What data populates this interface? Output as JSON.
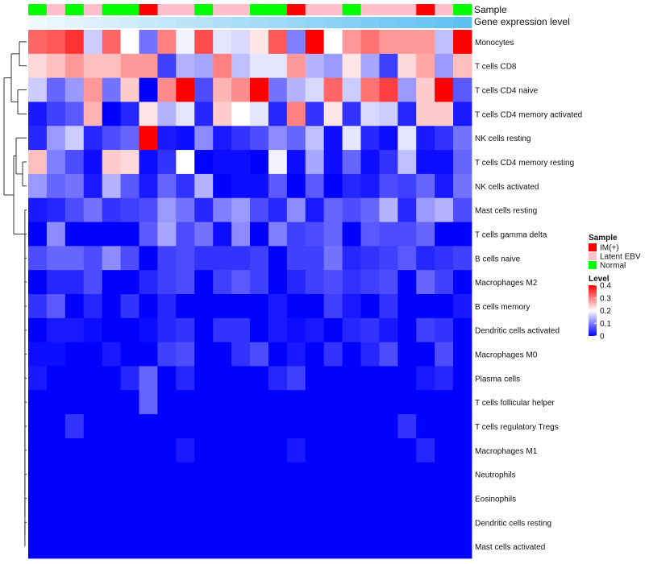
{
  "chart_data": {
    "type": "heatmap",
    "title": "",
    "xlabel": "",
    "ylabel": "",
    "annotation_rows": [
      "Sample",
      "Gene expression level"
    ],
    "sample_groups": [
      "N",
      "L",
      "N",
      "L",
      "N",
      "N",
      "I",
      "L",
      "L",
      "N",
      "L",
      "L",
      "N",
      "N",
      "I",
      "L",
      "L",
      "N",
      "L",
      "L",
      "L",
      "I",
      "L",
      "N"
    ],
    "gene_expression_level": [
      0.02,
      0.06,
      0.1,
      0.14,
      0.18,
      0.22,
      0.26,
      0.3,
      0.34,
      0.38,
      0.42,
      0.46,
      0.5,
      0.54,
      0.58,
      0.62,
      0.66,
      0.7,
      0.74,
      0.78,
      0.82,
      0.86,
      0.9,
      0.94
    ],
    "rows": [
      "Monocytes",
      "T cells CD8",
      "T cells CD4 naive",
      "T cells CD4 memory activated",
      "NK cells resting",
      "T cells CD4 memory resting",
      "NK cells activated",
      "Mast cells resting",
      "T cells gamma delta",
      "B cells naive",
      "Macrophages M2",
      "B cells memory",
      "Dendritic cells activated",
      "Macrophages M0",
      "Plasma cells",
      "T cells follicular helper",
      "T cells regulatory  Tregs",
      "Macrophages M1",
      "Neutrophils",
      "Eosinophils",
      "Dendritic cells resting",
      "Mast cells activated"
    ],
    "values": [
      [
        0.32,
        0.33,
        0.36,
        0.16,
        0.32,
        0.2,
        0.09,
        0.3,
        0.19,
        0.34,
        0.18,
        0.17,
        0.22,
        0.33,
        0.1,
        0.4,
        0.2,
        0.28,
        0.31,
        0.28,
        0.28,
        0.28,
        0.15,
        0.4
      ],
      [
        0.23,
        0.25,
        0.28,
        0.25,
        0.25,
        0.28,
        0.28,
        0.05,
        0.14,
        0.13,
        0.3,
        0.15,
        0.18,
        0.18,
        0.28,
        0.14,
        0.12,
        0.22,
        0.13,
        0.05,
        0.23,
        0.27,
        0.12,
        0.25
      ],
      [
        0.16,
        0.08,
        0.12,
        0.28,
        0.09,
        0.24,
        0.0,
        0.29,
        0.4,
        0.06,
        0.26,
        0.29,
        0.4,
        0.09,
        0.14,
        0.17,
        0.32,
        0.16,
        0.31,
        0.35,
        0.12,
        0.24,
        0.4,
        0.07
      ],
      [
        0.02,
        0.05,
        0.07,
        0.26,
        0.0,
        0.03,
        0.22,
        0.14,
        0.18,
        0.03,
        0.24,
        0.2,
        0.18,
        0.03,
        0.3,
        0.04,
        0.22,
        0.04,
        0.17,
        0.16,
        0.03,
        0.24,
        0.24,
        0.02
      ],
      [
        0.03,
        0.12,
        0.16,
        0.03,
        0.06,
        0.08,
        0.4,
        0.02,
        0.01,
        0.11,
        0.02,
        0.04,
        0.06,
        0.11,
        0.08,
        0.15,
        0.01,
        0.18,
        0.03,
        0.01,
        0.18,
        0.02,
        0.04,
        0.09
      ],
      [
        0.25,
        0.1,
        0.06,
        0.01,
        0.24,
        0.23,
        0.01,
        0.04,
        0.2,
        0.0,
        0.01,
        0.01,
        0.0,
        0.19,
        0.01,
        0.13,
        0.01,
        0.08,
        0.01,
        0.04,
        0.15,
        0.01,
        0.01,
        0.08
      ],
      [
        0.12,
        0.08,
        0.09,
        0.02,
        0.14,
        0.07,
        0.02,
        0.08,
        0.04,
        0.14,
        0.0,
        0.01,
        0.01,
        0.07,
        0.0,
        0.07,
        0.0,
        0.03,
        0.02,
        0.06,
        0.05,
        0.08,
        0.02,
        0.09
      ],
      [
        0.02,
        0.03,
        0.06,
        0.09,
        0.04,
        0.05,
        0.06,
        0.12,
        0.09,
        0.03,
        0.1,
        0.12,
        0.06,
        0.03,
        0.11,
        0.02,
        0.08,
        0.06,
        0.08,
        0.14,
        0.03,
        0.12,
        0.14,
        0.06
      ],
      [
        0.0,
        0.11,
        0.0,
        0.0,
        0.0,
        0.0,
        0.07,
        0.13,
        0.06,
        0.09,
        0.01,
        0.11,
        0.0,
        0.1,
        0.05,
        0.06,
        0.08,
        0.0,
        0.07,
        0.06,
        0.06,
        0.08,
        0.0,
        0.0
      ],
      [
        0.06,
        0.08,
        0.08,
        0.06,
        0.11,
        0.06,
        0.0,
        0.05,
        0.06,
        0.04,
        0.04,
        0.04,
        0.05,
        0.0,
        0.05,
        0.05,
        0.09,
        0.03,
        0.04,
        0.05,
        0.07,
        0.03,
        0.04,
        0.05
      ],
      [
        0.0,
        0.03,
        0.03,
        0.06,
        0.0,
        0.0,
        0.03,
        0.05,
        0.06,
        0.0,
        0.05,
        0.07,
        0.05,
        0.0,
        0.03,
        0.05,
        0.06,
        0.04,
        0.05,
        0.06,
        0.0,
        0.08,
        0.05,
        0.0
      ],
      [
        0.04,
        0.07,
        0.0,
        0.03,
        0.0,
        0.04,
        0.0,
        0.03,
        0.0,
        0.0,
        0.0,
        0.0,
        0.0,
        0.02,
        0.0,
        0.0,
        0.05,
        0.02,
        0.0,
        0.04,
        0.0,
        0.0,
        0.0,
        0.02
      ],
      [
        0.0,
        0.02,
        0.02,
        0.01,
        0.0,
        0.0,
        0.01,
        0.03,
        0.04,
        0.0,
        0.04,
        0.04,
        0.0,
        0.02,
        0.01,
        0.02,
        0.0,
        0.03,
        0.04,
        0.02,
        0.0,
        0.05,
        0.04,
        0.0
      ],
      [
        0.01,
        0.01,
        0.0,
        0.0,
        0.02,
        0.0,
        0.0,
        0.05,
        0.06,
        0.0,
        0.0,
        0.04,
        0.06,
        0.0,
        0.02,
        0.0,
        0.04,
        0.0,
        0.03,
        0.06,
        0.0,
        0.0,
        0.06,
        0.0
      ],
      [
        0.02,
        0.0,
        0.0,
        0.0,
        0.0,
        0.03,
        0.08,
        0.0,
        0.03,
        0.0,
        0.0,
        0.0,
        0.0,
        0.03,
        0.05,
        0.0,
        0.0,
        0.0,
        0.0,
        0.0,
        0.0,
        0.02,
        0.03,
        0.0
      ],
      [
        0.0,
        0.0,
        0.0,
        0.0,
        0.0,
        0.0,
        0.08,
        0.0,
        0.0,
        0.0,
        0.0,
        0.0,
        0.0,
        0.0,
        0.0,
        0.0,
        0.0,
        0.0,
        0.0,
        0.0,
        0.0,
        0.0,
        0.0,
        0.0
      ],
      [
        0.0,
        0.0,
        0.04,
        0.0,
        0.0,
        0.0,
        0.0,
        0.0,
        0.0,
        0.0,
        0.0,
        0.0,
        0.0,
        0.0,
        0.0,
        0.0,
        0.0,
        0.0,
        0.0,
        0.0,
        0.04,
        0.0,
        0.0,
        0.0
      ],
      [
        0.0,
        0.0,
        0.0,
        0.0,
        0.0,
        0.0,
        0.0,
        0.0,
        0.02,
        0.0,
        0.0,
        0.0,
        0.0,
        0.0,
        0.02,
        0.0,
        0.0,
        0.0,
        0.0,
        0.0,
        0.0,
        0.03,
        0.0,
        0.0
      ],
      [
        0.0,
        0.0,
        0.0,
        0.0,
        0.0,
        0.0,
        0.0,
        0.0,
        0.0,
        0.0,
        0.0,
        0.0,
        0.0,
        0.0,
        0.0,
        0.0,
        0.0,
        0.0,
        0.0,
        0.0,
        0.0,
        0.0,
        0.0,
        0.0
      ],
      [
        0.0,
        0.0,
        0.0,
        0.0,
        0.0,
        0.0,
        0.0,
        0.0,
        0.0,
        0.0,
        0.0,
        0.0,
        0.0,
        0.0,
        0.0,
        0.0,
        0.0,
        0.0,
        0.0,
        0.0,
        0.0,
        0.0,
        0.0,
        0.0
      ],
      [
        0.0,
        0.0,
        0.0,
        0.0,
        0.0,
        0.0,
        0.0,
        0.0,
        0.0,
        0.0,
        0.0,
        0.0,
        0.0,
        0.0,
        0.0,
        0.0,
        0.0,
        0.0,
        0.0,
        0.0,
        0.0,
        0.0,
        0.0,
        0.0
      ],
      [
        0.0,
        0.0,
        0.0,
        0.0,
        0.0,
        0.0,
        0.0,
        0.0,
        0.0,
        0.0,
        0.0,
        0.0,
        0.0,
        0.0,
        0.0,
        0.0,
        0.0,
        0.0,
        0.0,
        0.0,
        0.0,
        0.0,
        0.0,
        0.0
      ]
    ],
    "color_scale": {
      "min": 0,
      "max": 0.4,
      "low": "#0000FF",
      "mid": "#FFFFFF",
      "high": "#FF0000"
    },
    "legend": {
      "sample_title": "Sample",
      "sample_items": [
        {
          "key": "I",
          "label": "IM(+)",
          "color": "#FF0000"
        },
        {
          "key": "L",
          "label": "Latent EBV",
          "color": "#FFC0CB"
        },
        {
          "key": "N",
          "label": "Normal",
          "color": "#00FF00"
        }
      ],
      "level_title": "Level",
      "level_ticks": [
        "0.4",
        "0.3",
        "0.2",
        "0.1",
        "0"
      ],
      "level_tick_values": [
        0.4,
        0.3,
        0.2,
        0.1,
        0.0
      ]
    },
    "expression_level_colors": {
      "low": "#F2FAFF",
      "high": "#56BDF0"
    }
  }
}
